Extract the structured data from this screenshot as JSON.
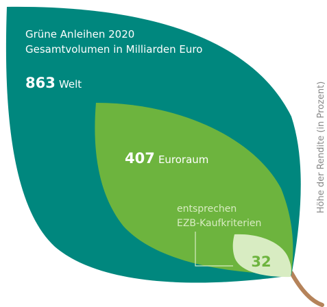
{
  "title": "Grüne Anleihen 2020",
  "subtitle": "Gesamtvolumen in Milliarden Euro",
  "levels": [
    {
      "value": "863",
      "label": "Welt"
    },
    {
      "value": "407",
      "label": "Euroraum"
    },
    {
      "value": "32",
      "label_lines": [
        "entsprechen",
        "EZB-Kaufkriterien"
      ]
    }
  ],
  "side_label": "Höhe der Rendite (in Prozent)"
}
